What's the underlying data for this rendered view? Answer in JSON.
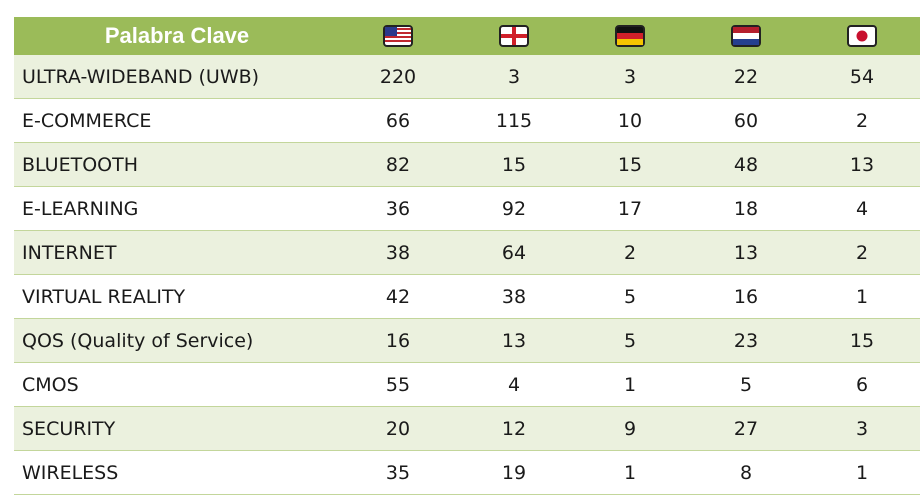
{
  "table": {
    "header": "Palabra Clave",
    "rows": [
      [
        "ULTRA-WIDEBAND (UWB)",
        "220",
        "3",
        "3",
        "22",
        "54"
      ],
      [
        "E-COMMERCE",
        "66",
        "115",
        "10",
        "60",
        "2"
      ],
      [
        "BLUETOOTH",
        "82",
        "15",
        "15",
        "48",
        "13"
      ],
      [
        "E-LEARNING",
        "36",
        "92",
        "17",
        "18",
        "4"
      ],
      [
        "INTERNET",
        "38",
        "64",
        "2",
        "13",
        "2"
      ],
      [
        "VIRTUAL REALITY",
        "42",
        "38",
        "5",
        "16",
        "1"
      ],
      [
        "QOS (Quality of Service)",
        "16",
        "13",
        "5",
        "23",
        "15"
      ],
      [
        "CMOS",
        "55",
        "4",
        "1",
        "5",
        "6"
      ],
      [
        "SECURITY",
        "20",
        "12",
        "9",
        "27",
        "3"
      ],
      [
        "WIRELESS",
        "35",
        "19",
        "1",
        "8",
        "1"
      ]
    ]
  }
}
